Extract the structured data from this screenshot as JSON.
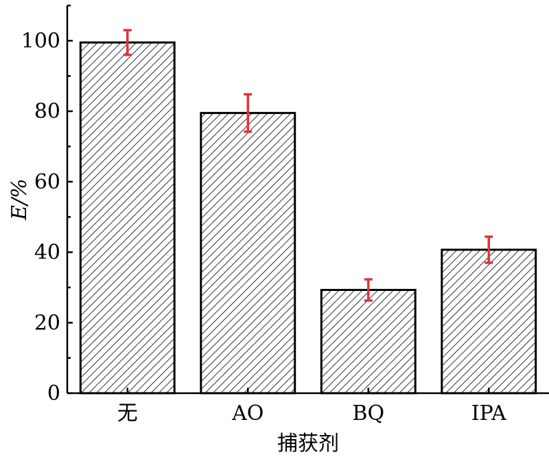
{
  "chart_data": {
    "type": "bar",
    "categories": [
      "无",
      "AO",
      "BQ",
      "IPA"
    ],
    "values": [
      99.5,
      79.5,
      29.3,
      40.7
    ],
    "errors": [
      3.5,
      5.3,
      3.0,
      3.7
    ],
    "title": "",
    "xlabel": "捕获剂",
    "ylabel": "E/%",
    "ylim": [
      0,
      110
    ],
    "yticks": [
      0,
      20,
      40,
      60,
      80,
      100
    ],
    "grid": false,
    "bar_pattern": "diagonal-hatch",
    "error_bar_color": "#e0343a"
  }
}
